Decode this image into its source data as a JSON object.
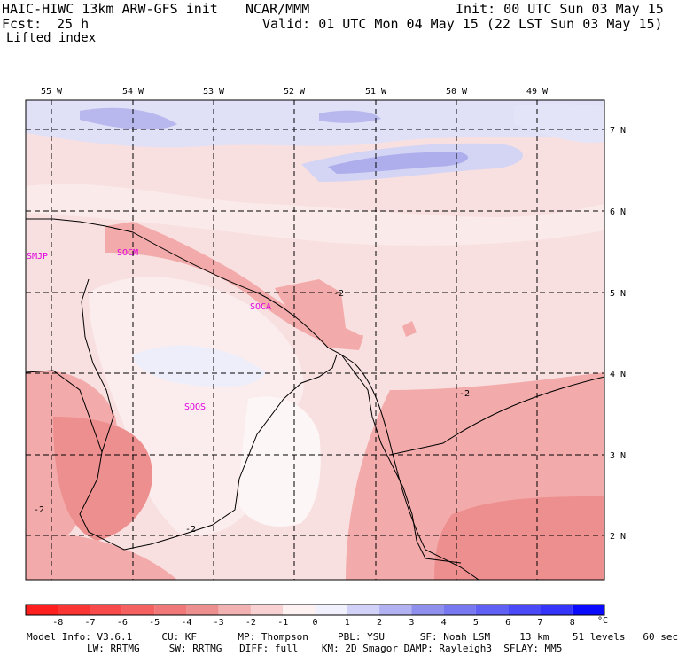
{
  "header": {
    "title": "HAIC-HIWC 13km ARW-GFS init",
    "org": "NCAR/MMM",
    "init": "Init: 00 UTC Sun 03 May 15",
    "fcst_label": "Fcst:",
    "fcst_value": "25 h",
    "valid": "Valid: 01 UTC Mon 04 May 15 (22 LST Sun 03 May 15)",
    "field": "Lifted index"
  },
  "map": {
    "lon_labels": [
      "55 W",
      "54 W",
      "53 W",
      "52 W",
      "51 W",
      "50 W",
      "49 W"
    ],
    "lat_labels": [
      "7 N",
      "6 N",
      "5 N",
      "4 N",
      "3 N",
      "2 N"
    ],
    "stations": [
      "SMJP",
      "SOCM",
      "SOCA",
      "SOOS"
    ],
    "contour_labels": [
      "-2",
      "-2",
      "-2",
      "-2"
    ],
    "station_color": "#e000e0"
  },
  "colorbar": {
    "ticks": [
      "-8",
      "-7",
      "-6",
      "-5",
      "-4",
      "-3",
      "-2",
      "-1",
      "0",
      "1",
      "2",
      "3",
      "4",
      "5",
      "6",
      "7",
      "8"
    ],
    "unit": "°C",
    "colors": [
      "#ff1f1f",
      "#fb3434",
      "#f84a4a",
      "#f56060",
      "#f17878",
      "#ee8f8f",
      "#f3b2b2",
      "#f8d2d2",
      "#fdf1f1",
      "#f1f1fd",
      "#d2d2f8",
      "#b2b2f3",
      "#8f8fee",
      "#7878f1",
      "#6060f5",
      "#4a4af8",
      "#3434fb",
      "#0a0afe"
    ]
  },
  "model_info": {
    "line1": "Model Info: V3.6.1     CU: KF       MP: Thompson     PBL: YSU      SF: Noah LSM     13 km    51 levels   60 sec",
    "line2": "LW: RRTMG     SW: RRTMG   DIFF: full    KM: 2D Smagor DAMP: Rayleigh3  SFLAY: MM5"
  }
}
